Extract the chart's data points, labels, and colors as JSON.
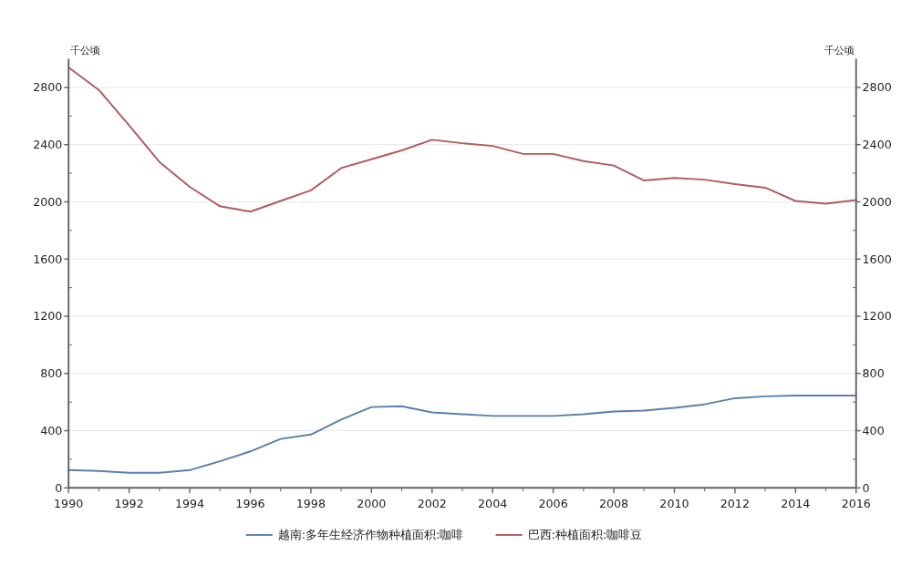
{
  "chart_data": {
    "type": "line",
    "ylabel": "千公顷",
    "y2label": "千公顷",
    "x": [
      1990,
      1991,
      1992,
      1993,
      1994,
      1995,
      1996,
      1997,
      1998,
      1999,
      2000,
      2001,
      2002,
      2003,
      2004,
      2005,
      2006,
      2007,
      2008,
      2009,
      2010,
      2011,
      2012,
      2013,
      2014,
      2015,
      2016
    ],
    "series": [
      {
        "name": "越南:多年生经济作物种植面积:咖啡",
        "color": "#5b7fab",
        "values": [
          124,
          118,
          106,
          106,
          124,
          186,
          255,
          342,
          373,
          478,
          565,
          571,
          528,
          515,
          503,
          503,
          503,
          515,
          534,
          540,
          559,
          584,
          627,
          640,
          646,
          646,
          646
        ]
      },
      {
        "name": "巴西:种植面积:咖啡豆",
        "color": "#b05c5c",
        "values": [
          2940,
          2782,
          2534,
          2279,
          2105,
          1969,
          1931,
          2006,
          2080,
          2236,
          2298,
          2360,
          2434,
          2410,
          2391,
          2335,
          2335,
          2285,
          2254,
          2149,
          2167,
          2155,
          2124,
          2099,
          2006,
          1987,
          2012
        ]
      }
    ],
    "xlim": [
      1990,
      2016
    ],
    "xticks": [
      1990,
      1992,
      1994,
      1996,
      1998,
      2000,
      2002,
      2004,
      2006,
      2008,
      2010,
      2012,
      2014,
      2016
    ],
    "ylim": [
      0,
      3000
    ],
    "yticks": [
      0,
      400,
      800,
      1200,
      1600,
      2000,
      2400,
      2800
    ],
    "y2lim": [
      0,
      3000
    ],
    "y2ticks": [
      0,
      400,
      800,
      1200,
      1600,
      2000,
      2400,
      2800
    ],
    "grid": "y",
    "legend": "bottom",
    "marker": "none",
    "line_style": "solid"
  }
}
